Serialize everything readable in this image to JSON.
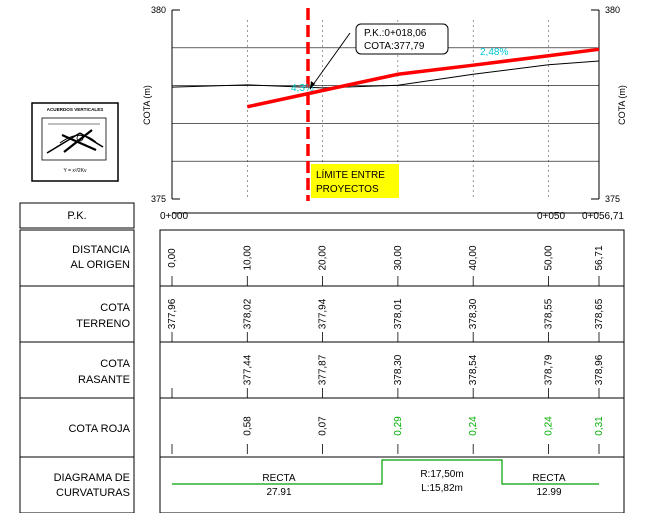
{
  "profile": {
    "axis": {
      "y_top": "380",
      "y_bottom": "375",
      "ylabel": "COTA (m)",
      "ylim": [
        375,
        380
      ],
      "xlim": [
        0,
        56.71
      ]
    },
    "annotation": {
      "line1": "P.K.:0+018,06",
      "line2": "COTA:377,79"
    },
    "slope_left": "4,3%",
    "slope_right": "2,48%",
    "limit_label": {
      "line1": "LÍMITE ENTRE",
      "line2": "PROYECTOS"
    },
    "limit_x": 18.06,
    "colors": {
      "rasante": "#ff0000",
      "terreno": "#000000",
      "slope": "#00c8d2",
      "limit_fill": "#ffff00",
      "positive": "#00b000",
      "grid": "#000000"
    }
  },
  "legend": {
    "title": "ACUERDOS VERTICALES",
    "formula": "Y = x²/2Kv"
  },
  "guitar": {
    "pk_label": "P.K.",
    "pk_ticks": [
      "0+000",
      "0+050",
      "0+056,71"
    ],
    "rows": [
      {
        "label1": "DISTANCIA",
        "label2": "AL ORIGEN",
        "values": [
          "0,00",
          "10,00",
          "20,00",
          "30,00",
          "40,00",
          "50,00",
          "56,71"
        ]
      },
      {
        "label1": "COTA",
        "label2": "TERRENO",
        "values": [
          "377,96",
          "378,02",
          "377,94",
          "378,01",
          "378,30",
          "378,55",
          "378,65"
        ]
      },
      {
        "label1": "COTA",
        "label2": "RASANTE",
        "values": [
          "",
          "377,44",
          "377,87",
          "378,30",
          "378,54",
          "378,79",
          "378,96"
        ]
      },
      {
        "label1": "",
        "label2": "COTA ROJA",
        "values": [
          "",
          "0,58",
          "0,07",
          "0,29",
          "0,24",
          "0,24",
          "0,31"
        ],
        "green": [
          false,
          false,
          false,
          true,
          true,
          true,
          true
        ]
      }
    ],
    "curvature": {
      "label1": "DIAGRAMA DE",
      "label2": "CURVATURAS",
      "segments": [
        {
          "line1": "RECTA",
          "line2": "27.91"
        },
        {
          "line1": "R:17,50m",
          "line2": "L:15,82m"
        },
        {
          "line1": "RECTA",
          "line2": "12.99"
        }
      ]
    }
  },
  "chart_data": {
    "type": "line",
    "xlabel": "",
    "ylabel": "COTA (m)",
    "ylim": [
      375,
      380
    ],
    "series": [
      {
        "x": [
          0,
          10,
          20,
          30,
          40,
          50,
          56.71
        ],
        "values": [
          377.96,
          378.02,
          377.94,
          378.01,
          378.3,
          378.55,
          378.65
        ]
      },
      {
        "x": [
          10,
          20,
          30,
          40,
          50,
          56.71
        ],
        "values": [
          377.44,
          377.87,
          378.3,
          378.54,
          378.79,
          378.96
        ]
      }
    ]
  }
}
